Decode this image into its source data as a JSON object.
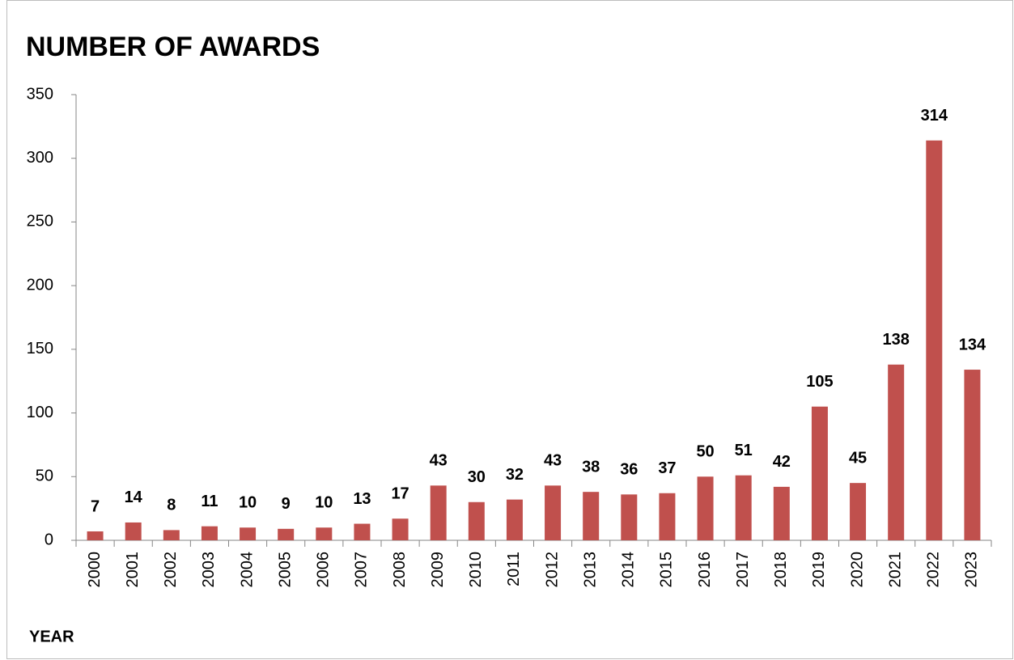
{
  "chart_data": {
    "type": "bar",
    "title": "NUMBER OF AWARDS",
    "x_label": "YEAR",
    "categories": [
      "2000",
      "2001",
      "2002",
      "2003",
      "2004",
      "2005",
      "2006",
      "2007",
      "2008",
      "2009",
      "2010",
      "2011",
      "2012",
      "2013",
      "2014",
      "2015",
      "2016",
      "2017",
      "2018",
      "2019",
      "2020",
      "2021",
      "2022",
      "2023"
    ],
    "values": [
      7,
      14,
      8,
      11,
      10,
      9,
      10,
      13,
      17,
      43,
      30,
      32,
      43,
      38,
      36,
      37,
      50,
      51,
      42,
      105,
      45,
      138,
      314,
      134
    ],
    "color": "#c0504d",
    "ylim": [
      0,
      350
    ],
    "yticks": [
      0,
      50,
      100,
      150,
      200,
      250,
      300,
      350
    ],
    "grid": false
  }
}
